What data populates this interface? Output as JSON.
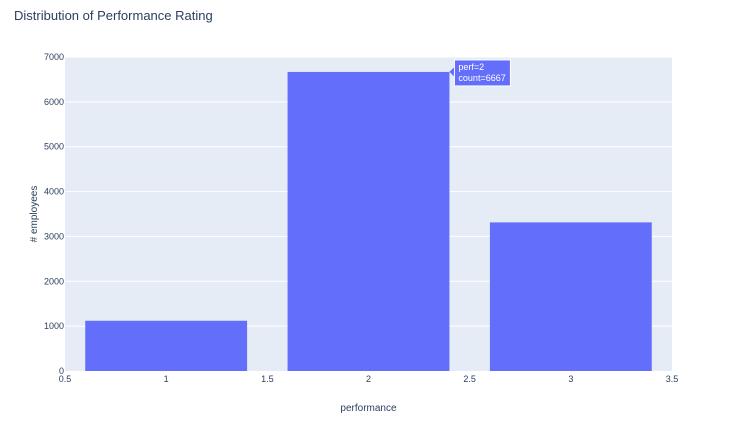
{
  "chart_data": {
    "type": "bar",
    "title": "Distribution of Performance Rating",
    "xlabel": "performance",
    "ylabel": "# employees",
    "x": [
      1,
      2,
      3
    ],
    "values": [
      1120,
      6667,
      3313
    ],
    "bar_width": 0.8,
    "xlim": [
      0.5,
      3.5
    ],
    "ylim": [
      0,
      7000
    ],
    "x_ticks": [
      0.5,
      1,
      1.5,
      2,
      2.5,
      3,
      3.5
    ],
    "x_tick_labels": [
      "0.5",
      "1",
      "1.5",
      "2",
      "2.5",
      "3",
      "3.5"
    ],
    "y_ticks": [
      0,
      1000,
      2000,
      3000,
      4000,
      5000,
      6000,
      7000
    ],
    "y_tick_labels": [
      "0",
      "1000",
      "2000",
      "3000",
      "4000",
      "5000",
      "6000",
      "7000"
    ],
    "grid": true,
    "bar_color": "#636efa",
    "plot_bgcolor": "#e5ecf6",
    "hover": {
      "x": 2,
      "lines": [
        "perf=2",
        "count=6667"
      ]
    }
  }
}
